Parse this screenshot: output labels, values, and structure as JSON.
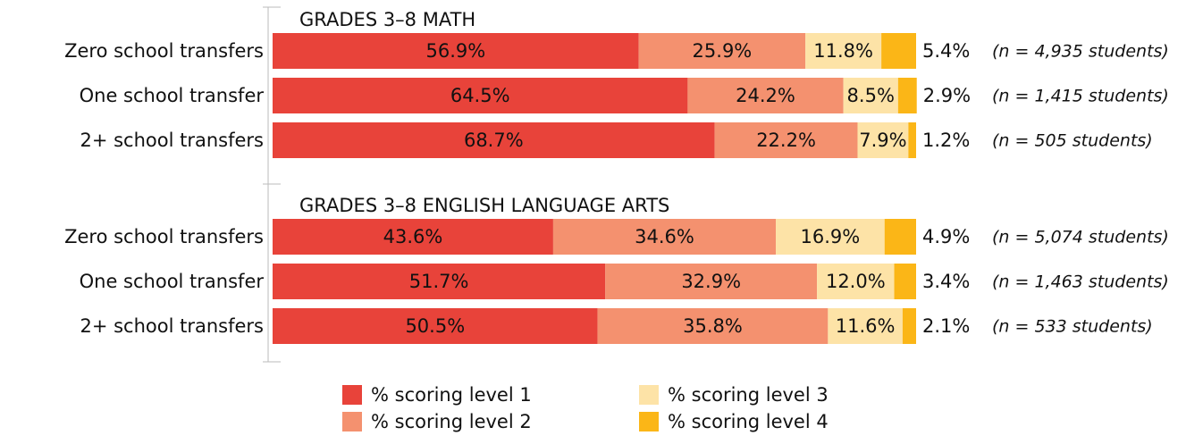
{
  "chart_data": [
    {
      "type": "bar",
      "orientation": "horizontal",
      "stacked": true,
      "title": "GRADES 3–8 MATH",
      "categories": [
        "Zero school transfers",
        "One school transfer",
        "2+ school transfers"
      ],
      "xlim": [
        0,
        100
      ],
      "series": [
        {
          "name": "% scoring level 1",
          "color": "#e8433a",
          "values": [
            56.9,
            64.5,
            68.7
          ],
          "value_labels": [
            "56.9%",
            "64.5%",
            "68.7%"
          ]
        },
        {
          "name": "% scoring level 2",
          "color": "#f4916f",
          "values": [
            25.9,
            24.2,
            22.2
          ],
          "value_labels": [
            "25.9%",
            "24.2%",
            "22.2%"
          ]
        },
        {
          "name": "% scoring level 3",
          "color": "#fde3a7",
          "values": [
            11.8,
            8.5,
            7.9
          ],
          "value_labels": [
            "11.8%",
            "8.5%",
            "7.9%"
          ]
        },
        {
          "name": "% scoring level 4",
          "color": "#fbb617",
          "values": [
            5.4,
            2.9,
            1.2
          ],
          "value_labels": [
            "5.4%",
            "2.9%",
            "1.2%"
          ]
        }
      ],
      "annotations": [
        "(n = 4,935 students)",
        "(n = 1,415 students)",
        "(n = 505 students)"
      ]
    },
    {
      "type": "bar",
      "orientation": "horizontal",
      "stacked": true,
      "title": "GRADES 3–8 ENGLISH LANGUAGE ARTS",
      "categories": [
        "Zero school transfers",
        "One school transfer",
        "2+ school transfers"
      ],
      "xlim": [
        0,
        100
      ],
      "series": [
        {
          "color": "#e8433a",
          "values": [
            43.6,
            51.7,
            50.5
          ],
          "value_labels": [
            "43.6%",
            "51.7%",
            "50.5%"
          ]
        },
        {
          "color": "#f4916f",
          "values": [
            34.6,
            32.9,
            35.8
          ],
          "value_labels": [
            "34.6%",
            "32.9%",
            "35.8%"
          ]
        },
        {
          "color": "#fde3a7",
          "values": [
            16.9,
            12.0,
            11.6
          ],
          "value_labels": [
            "16.9%",
            "12.0%",
            "11.6%"
          ]
        },
        {
          "color": "#fbb617",
          "values": [
            4.9,
            3.4,
            2.1
          ],
          "value_labels": [
            "4.9%",
            "3.4%",
            "2.1%"
          ]
        }
      ],
      "annotations": [
        "(n = 5,074 students)",
        "(n = 1,463 students)",
        "(n = 533 students)"
      ]
    }
  ]
}
